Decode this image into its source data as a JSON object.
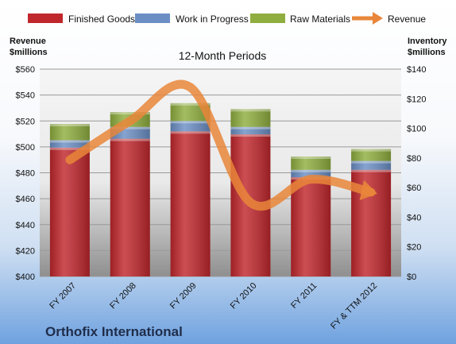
{
  "chart_data": {
    "type": "bar",
    "stacked": true,
    "subtitle": "12-Month Periods",
    "company": "Orthofix International",
    "left_axis": {
      "label_line1": "Revenue",
      "label_line2": "$millions",
      "range": [
        400,
        560
      ],
      "ticks": [
        "$400",
        "$420",
        "$440",
        "$460",
        "$480",
        "$500",
        "$520",
        "$540",
        "$560"
      ]
    },
    "right_axis": {
      "label_line1": "Inventory",
      "label_line2": "$millions",
      "range": [
        0,
        140
      ],
      "ticks": [
        "$0",
        "$20",
        "$40",
        "$60",
        "$80",
        "$100",
        "$120",
        "$140"
      ]
    },
    "categories": [
      "FY 2007",
      "FY 2008",
      "FY 2009",
      "FY 2010",
      "FY 2011",
      "FY & TTM 2012"
    ],
    "series": [
      {
        "name": "Finished Goods",
        "axis": "right",
        "color": "#c0272d",
        "values": [
          87,
          93,
          98,
          96,
          67,
          72
        ]
      },
      {
        "name": "Work in Progress",
        "axis": "right",
        "color": "#6b8fc4",
        "values": [
          5,
          8,
          7,
          5,
          5,
          6
        ]
      },
      {
        "name": "Raw Materials",
        "axis": "right",
        "color": "#8fae3f",
        "values": [
          11,
          10,
          12,
          12,
          9,
          8
        ]
      },
      {
        "name": "Revenue",
        "axis": "left",
        "type": "line",
        "color": "#e9863a",
        "values": [
          490,
          520,
          546,
          457,
          475,
          465
        ]
      }
    ],
    "legend_position": "top",
    "grid": true
  }
}
